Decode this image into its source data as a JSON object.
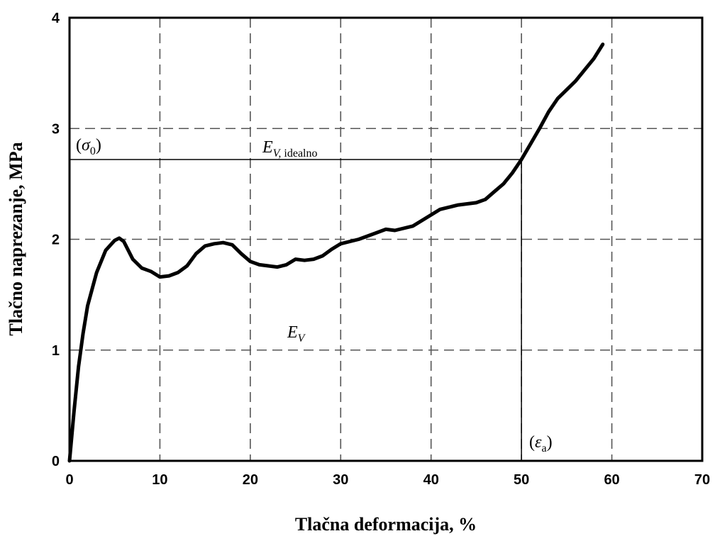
{
  "chart_data": {
    "type": "line",
    "xlabel": "Tlačna deformacija, %",
    "ylabel": "Tlačno naprezanje, MPa",
    "xlim": [
      0,
      70
    ],
    "ylim": [
      0,
      4
    ],
    "xticks": [
      0,
      10,
      20,
      30,
      40,
      50,
      60,
      70
    ],
    "yticks": [
      0,
      1,
      2,
      3,
      4
    ],
    "grid": true,
    "series": [
      {
        "x": [
          0,
          0.5,
          1,
          1.5,
          2,
          3,
          4,
          5,
          5.5,
          6,
          7,
          8,
          9,
          10,
          11,
          12,
          13,
          14,
          15,
          16,
          17,
          18,
          19,
          20,
          21,
          22,
          23,
          24,
          25,
          26,
          27,
          28,
          29,
          30,
          32,
          34,
          35,
          36,
          38,
          40,
          41,
          42,
          43,
          44,
          45,
          46,
          47,
          48,
          49,
          50,
          51,
          52,
          53,
          54,
          55,
          56,
          57,
          58,
          59
        ],
        "y": [
          0,
          0.45,
          0.85,
          1.15,
          1.4,
          1.7,
          1.9,
          1.99,
          2.01,
          1.98,
          1.82,
          1.74,
          1.71,
          1.66,
          1.67,
          1.7,
          1.76,
          1.87,
          1.94,
          1.96,
          1.97,
          1.95,
          1.87,
          1.8,
          1.77,
          1.76,
          1.75,
          1.77,
          1.82,
          1.81,
          1.82,
          1.85,
          1.91,
          1.96,
          2.0,
          2.06,
          2.09,
          2.08,
          2.12,
          2.22,
          2.27,
          2.29,
          2.31,
          2.32,
          2.33,
          2.36,
          2.43,
          2.5,
          2.6,
          2.72,
          2.86,
          3.0,
          3.15,
          3.27,
          3.35,
          3.43,
          3.53,
          3.63,
          3.76
        ]
      }
    ],
    "reference_lines": [
      {
        "orientation": "horizontal",
        "y": 2.72,
        "x_from": 0,
        "x_to": 50
      },
      {
        "orientation": "vertical",
        "x": 50,
        "y_from": 0,
        "y_to": 2.72
      }
    ],
    "annotations": {
      "sigma0": {
        "open": "(",
        "symbol": "σ",
        "sub": "0",
        "close": ")"
      },
      "ev_ideal": {
        "symbol": "E",
        "sub_italic": "V,",
        "sub_plain": " idealno"
      },
      "ev": {
        "symbol": "E",
        "sub": "V"
      },
      "eps_a": {
        "open": "(",
        "symbol": "ε",
        "sub": "a",
        "close": ")"
      }
    }
  }
}
